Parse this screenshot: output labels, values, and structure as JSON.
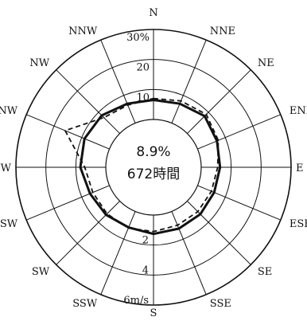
{
  "chart_data": {
    "type": "radar",
    "directions": [
      "N",
      "NNE",
      "NE",
      "ENE",
      "E",
      "ESE",
      "SE",
      "SSE",
      "S",
      "SSW",
      "SW",
      "WSW",
      "W",
      "WNW",
      "NW",
      "NNW"
    ],
    "frequency_scale": {
      "ticks": [
        10,
        20,
        30
      ],
      "max": 30,
      "unit_label": "30%"
    },
    "speed_scale": {
      "ticks": [
        2,
        4,
        6
      ],
      "max": 6,
      "unit_label": "6m/s"
    },
    "center": {
      "calm_percent": "8.9%",
      "hours": "672時間"
    },
    "series": [
      {
        "style": "solid-thick",
        "scale": "frequency",
        "values": [
          6.5,
          7.0,
          8.2,
          7.0,
          6.3,
          6.0,
          6.2,
          6.2,
          6.3,
          5.8,
          6.5,
          7.0,
          8.5,
          9.0,
          8.5,
          7.0
        ]
      },
      {
        "style": "dashed",
        "scale": "frequency",
        "values": [
          7.0,
          8.0,
          9.0,
          7.5,
          5.5,
          5.0,
          5.0,
          5.0,
          5.5,
          6.0,
          6.0,
          6.0,
          7.0,
          16.0,
          7.5,
          6.5
        ]
      }
    ]
  }
}
